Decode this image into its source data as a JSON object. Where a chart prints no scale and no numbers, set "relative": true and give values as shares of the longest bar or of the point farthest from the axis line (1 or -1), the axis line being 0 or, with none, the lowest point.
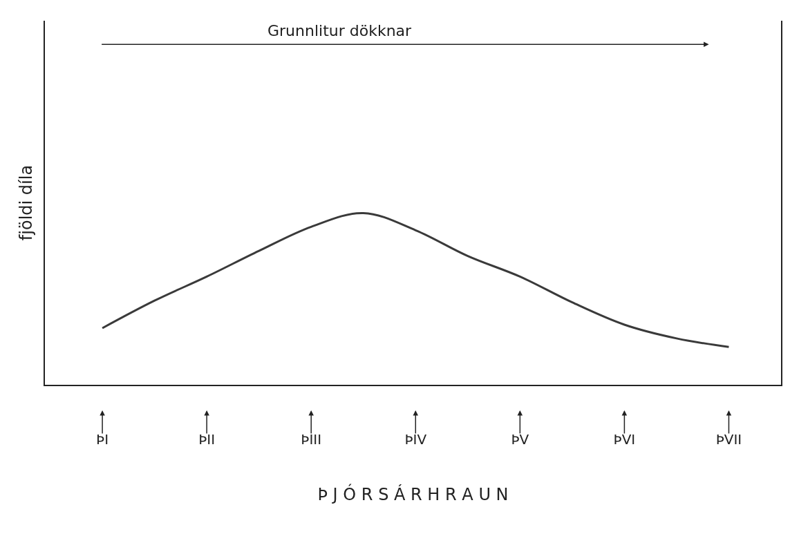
{
  "chart_data": {
    "type": "line",
    "relative": true,
    "color": "#3a3a3a",
    "categories": [
      "ÞI",
      null,
      "ÞII",
      null,
      "ÞIII",
      null,
      "ÞIV",
      null,
      "ÞV",
      null,
      "ÞVI",
      null,
      "ÞVII"
    ],
    "values": [
      0.33,
      0.49,
      0.63,
      0.78,
      0.92,
      1,
      0.9,
      0.75,
      0.63,
      0.48,
      0.35,
      0.27,
      0.22
    ],
    "xlabel": "Þ J Ó R S Á R H R A U N",
    "ylabel": "fjöldi díla",
    "annotations": [
      "Grunnlitur dökknar"
    ]
  }
}
